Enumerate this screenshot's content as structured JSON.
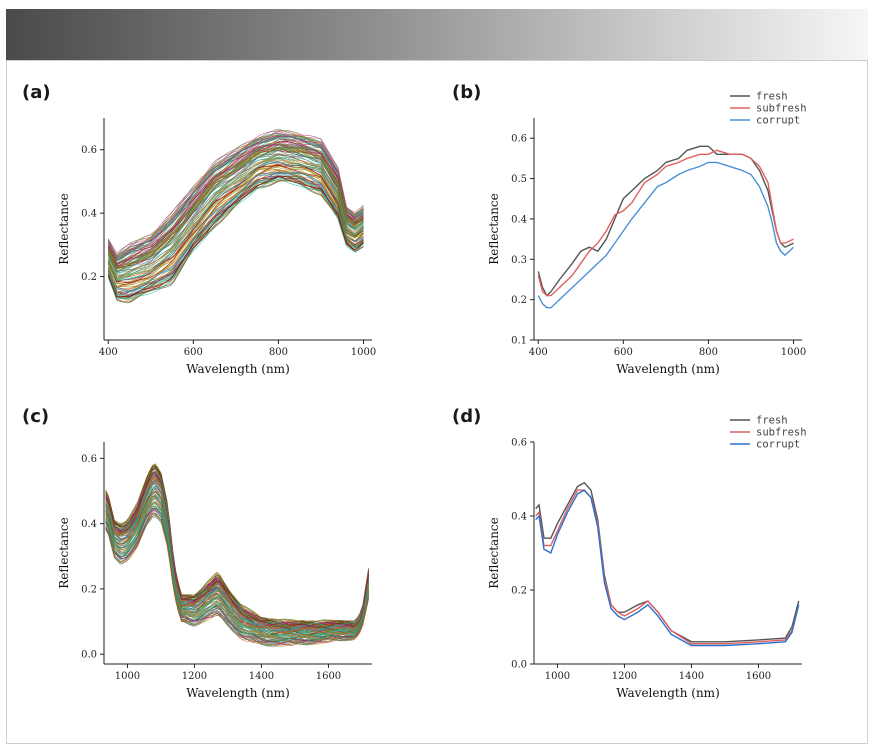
{
  "chart_data": [
    {
      "panel": "(a)",
      "type": "line",
      "xlabel": "Wavelength (nm)",
      "ylabel": "Reflectance",
      "xlim": [
        390,
        1020
      ],
      "ylim": [
        0.0,
        0.7
      ],
      "xticks": [
        400,
        600,
        800,
        1000
      ],
      "yticks": [
        0.2,
        0.4,
        0.6
      ],
      "band": {
        "x": [
          400,
          420,
          450,
          500,
          550,
          600,
          650,
          700,
          750,
          800,
          850,
          900,
          940,
          960,
          980,
          1000
        ],
        "lower": [
          0.2,
          0.13,
          0.12,
          0.15,
          0.18,
          0.28,
          0.36,
          0.42,
          0.48,
          0.5,
          0.49,
          0.46,
          0.38,
          0.3,
          0.28,
          0.3
        ],
        "upper": [
          0.32,
          0.27,
          0.3,
          0.33,
          0.4,
          0.48,
          0.56,
          0.6,
          0.64,
          0.66,
          0.65,
          0.63,
          0.54,
          0.42,
          0.4,
          0.42
        ],
        "mean": [
          0.26,
          0.2,
          0.21,
          0.25,
          0.3,
          0.39,
          0.47,
          0.52,
          0.55,
          0.58,
          0.57,
          0.55,
          0.47,
          0.36,
          0.33,
          0.35
        ]
      },
      "legend": null
    },
    {
      "panel": "(b)",
      "type": "line",
      "xlabel": "Wavelength (nm)",
      "ylabel": "Reflectance",
      "xlim": [
        390,
        1020
      ],
      "ylim": [
        0.1,
        0.65
      ],
      "xticks": [
        400,
        600,
        800,
        1000
      ],
      "yticks": [
        0.1,
        0.2,
        0.3,
        0.4,
        0.5,
        0.6
      ],
      "x": [
        400,
        410,
        420,
        430,
        450,
        480,
        500,
        520,
        540,
        560,
        580,
        600,
        620,
        650,
        680,
        700,
        730,
        750,
        780,
        800,
        820,
        850,
        880,
        900,
        920,
        940,
        950,
        960,
        970,
        980,
        1000
      ],
      "series": [
        {
          "name": "fresh",
          "color": "#555555",
          "values": [
            0.27,
            0.23,
            0.21,
            0.22,
            0.25,
            0.29,
            0.32,
            0.33,
            0.32,
            0.35,
            0.4,
            0.45,
            0.47,
            0.5,
            0.52,
            0.54,
            0.55,
            0.57,
            0.58,
            0.58,
            0.56,
            0.56,
            0.56,
            0.55,
            0.52,
            0.47,
            0.42,
            0.37,
            0.34,
            0.33,
            0.34
          ]
        },
        {
          "name": "subfresh",
          "color": "#e06060",
          "values": [
            0.26,
            0.22,
            0.21,
            0.21,
            0.23,
            0.26,
            0.29,
            0.32,
            0.34,
            0.37,
            0.41,
            0.42,
            0.44,
            0.49,
            0.51,
            0.53,
            0.54,
            0.55,
            0.56,
            0.56,
            0.57,
            0.56,
            0.56,
            0.55,
            0.53,
            0.49,
            0.43,
            0.37,
            0.34,
            0.34,
            0.35
          ]
        },
        {
          "name": "corrupt",
          "color": "#4a90d9",
          "values": [
            0.21,
            0.19,
            0.18,
            0.18,
            0.2,
            0.23,
            0.25,
            0.27,
            0.29,
            0.31,
            0.34,
            0.37,
            0.4,
            0.44,
            0.48,
            0.49,
            0.51,
            0.52,
            0.53,
            0.54,
            0.54,
            0.53,
            0.52,
            0.51,
            0.48,
            0.43,
            0.39,
            0.34,
            0.32,
            0.31,
            0.33
          ]
        }
      ],
      "legend": "top-right"
    },
    {
      "panel": "(c)",
      "type": "line",
      "xlabel": "Wavelength (nm)",
      "ylabel": "Reflectance",
      "xlim": [
        930,
        1730
      ],
      "ylim": [
        -0.03,
        0.65
      ],
      "xticks": [
        1000,
        1200,
        1400,
        1600
      ],
      "yticks": [
        0.0,
        0.2,
        0.4,
        0.6
      ],
      "band": {
        "x": [
          935,
          945,
          960,
          980,
          1000,
          1030,
          1060,
          1080,
          1100,
          1120,
          1140,
          1160,
          1200,
          1240,
          1270,
          1300,
          1340,
          1400,
          1500,
          1600,
          1680,
          1700,
          1720
        ],
        "lower": [
          0.38,
          0.36,
          0.3,
          0.28,
          0.29,
          0.33,
          0.4,
          0.43,
          0.41,
          0.33,
          0.18,
          0.1,
          0.09,
          0.11,
          0.12,
          0.09,
          0.05,
          0.03,
          0.03,
          0.04,
          0.05,
          0.08,
          0.17
        ],
        "upper": [
          0.5,
          0.48,
          0.41,
          0.4,
          0.41,
          0.46,
          0.55,
          0.59,
          0.56,
          0.46,
          0.27,
          0.18,
          0.18,
          0.22,
          0.25,
          0.2,
          0.15,
          0.11,
          0.1,
          0.1,
          0.1,
          0.13,
          0.26
        ],
        "mean": [
          0.43,
          0.42,
          0.35,
          0.33,
          0.35,
          0.39,
          0.46,
          0.5,
          0.48,
          0.38,
          0.22,
          0.14,
          0.13,
          0.16,
          0.17,
          0.13,
          0.08,
          0.06,
          0.06,
          0.06,
          0.07,
          0.1,
          0.21
        ]
      },
      "legend": null
    },
    {
      "panel": "(d)",
      "type": "line",
      "xlabel": "Wavelength (nm)",
      "ylabel": "Reflectance",
      "xlim": [
        930,
        1730
      ],
      "ylim": [
        0.0,
        0.6
      ],
      "xticks": [
        1000,
        1200,
        1400,
        1600
      ],
      "yticks": [
        0.0,
        0.2,
        0.4,
        0.6
      ],
      "x": [
        935,
        945,
        960,
        980,
        1000,
        1030,
        1060,
        1080,
        1100,
        1120,
        1140,
        1160,
        1180,
        1200,
        1240,
        1270,
        1300,
        1340,
        1400,
        1500,
        1600,
        1680,
        1700,
        1720
      ],
      "series": [
        {
          "name": "fresh",
          "color": "#555555",
          "values": [
            0.42,
            0.43,
            0.34,
            0.34,
            0.38,
            0.43,
            0.48,
            0.49,
            0.47,
            0.39,
            0.24,
            0.16,
            0.14,
            0.14,
            0.16,
            0.17,
            0.14,
            0.09,
            0.06,
            0.06,
            0.065,
            0.07,
            0.1,
            0.17
          ]
        },
        {
          "name": "subfresh",
          "color": "#e06060",
          "values": [
            0.4,
            0.41,
            0.32,
            0.32,
            0.36,
            0.42,
            0.47,
            0.47,
            0.45,
            0.38,
            0.23,
            0.16,
            0.14,
            0.13,
            0.15,
            0.17,
            0.14,
            0.09,
            0.055,
            0.055,
            0.06,
            0.065,
            0.09,
            0.16
          ]
        },
        {
          "name": "corrupt",
          "color": "#2a6fd0",
          "values": [
            0.39,
            0.4,
            0.31,
            0.3,
            0.35,
            0.41,
            0.46,
            0.47,
            0.45,
            0.37,
            0.22,
            0.15,
            0.13,
            0.12,
            0.14,
            0.16,
            0.13,
            0.08,
            0.05,
            0.05,
            0.055,
            0.06,
            0.085,
            0.16
          ]
        }
      ],
      "legend": "top-right"
    }
  ],
  "colors": {
    "band_palette": [
      "#2e8b57",
      "#d2691e",
      "#4682b4",
      "#b8860b",
      "#c71585",
      "#6b8e23",
      "#20b2aa",
      "#8b0000",
      "#556b2f"
    ]
  }
}
